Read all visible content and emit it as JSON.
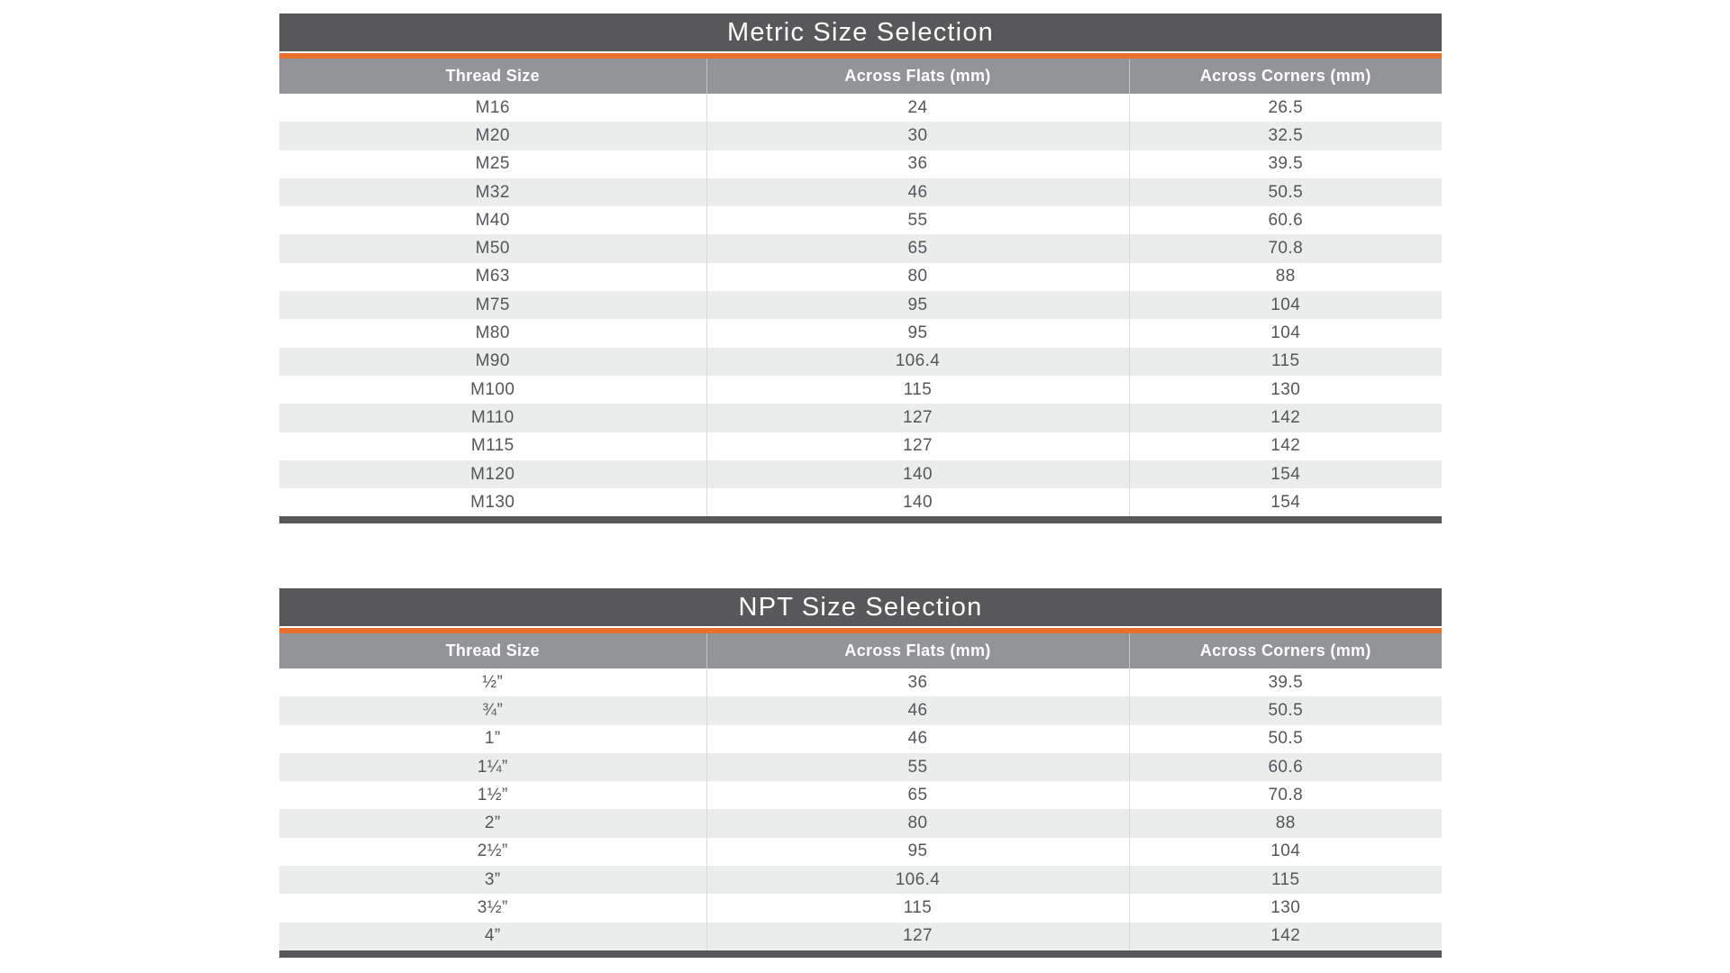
{
  "colors": {
    "title_bar": "#58585A",
    "accent_orange": "#E8702C",
    "header_bg": "#929497",
    "row_bg": "#FFFFFF",
    "row_alt_bg": "#EBECEC",
    "body_text": "#55565A",
    "divider": "#D9DADB",
    "bottom_bar": "#58585A",
    "title_text": "#FFFFFF",
    "header_text": "#FFFFFF"
  },
  "tables": [
    {
      "title": "Metric Size Selection",
      "columns": [
        "Thread Size",
        "Across Flats (mm)",
        "Across Corners (mm)"
      ],
      "rows": [
        [
          "M16",
          "24",
          "26.5"
        ],
        [
          "M20",
          "30",
          "32.5"
        ],
        [
          "M25",
          "36",
          "39.5"
        ],
        [
          "M32",
          "46",
          "50.5"
        ],
        [
          "M40",
          "55",
          "60.6"
        ],
        [
          "M50",
          "65",
          "70.8"
        ],
        [
          "M63",
          "80",
          "88"
        ],
        [
          "M75",
          "95",
          "104"
        ],
        [
          "M80",
          "95",
          "104"
        ],
        [
          "M90",
          "106.4",
          "115"
        ],
        [
          "M100",
          "115",
          "130"
        ],
        [
          "M110",
          "127",
          "142"
        ],
        [
          "M115",
          "127",
          "142"
        ],
        [
          "M120",
          "140",
          "154"
        ],
        [
          "M130",
          "140",
          "154"
        ]
      ]
    },
    {
      "title": "NPT Size Selection",
      "columns": [
        "Thread Size",
        "Across Flats (mm)",
        "Across Corners (mm)"
      ],
      "rows": [
        [
          "½”",
          "36",
          "39.5"
        ],
        [
          "¾”",
          "46",
          "50.5"
        ],
        [
          "1”",
          "46",
          "50.5"
        ],
        [
          "1¼”",
          "55",
          "60.6"
        ],
        [
          "1½”",
          "65",
          "70.8"
        ],
        [
          "2”",
          "80",
          "88"
        ],
        [
          "2½”",
          "95",
          "104"
        ],
        [
          "3”",
          "106.4",
          "115"
        ],
        [
          "3½”",
          "115",
          "130"
        ],
        [
          "4”",
          "127",
          "142"
        ]
      ]
    }
  ]
}
